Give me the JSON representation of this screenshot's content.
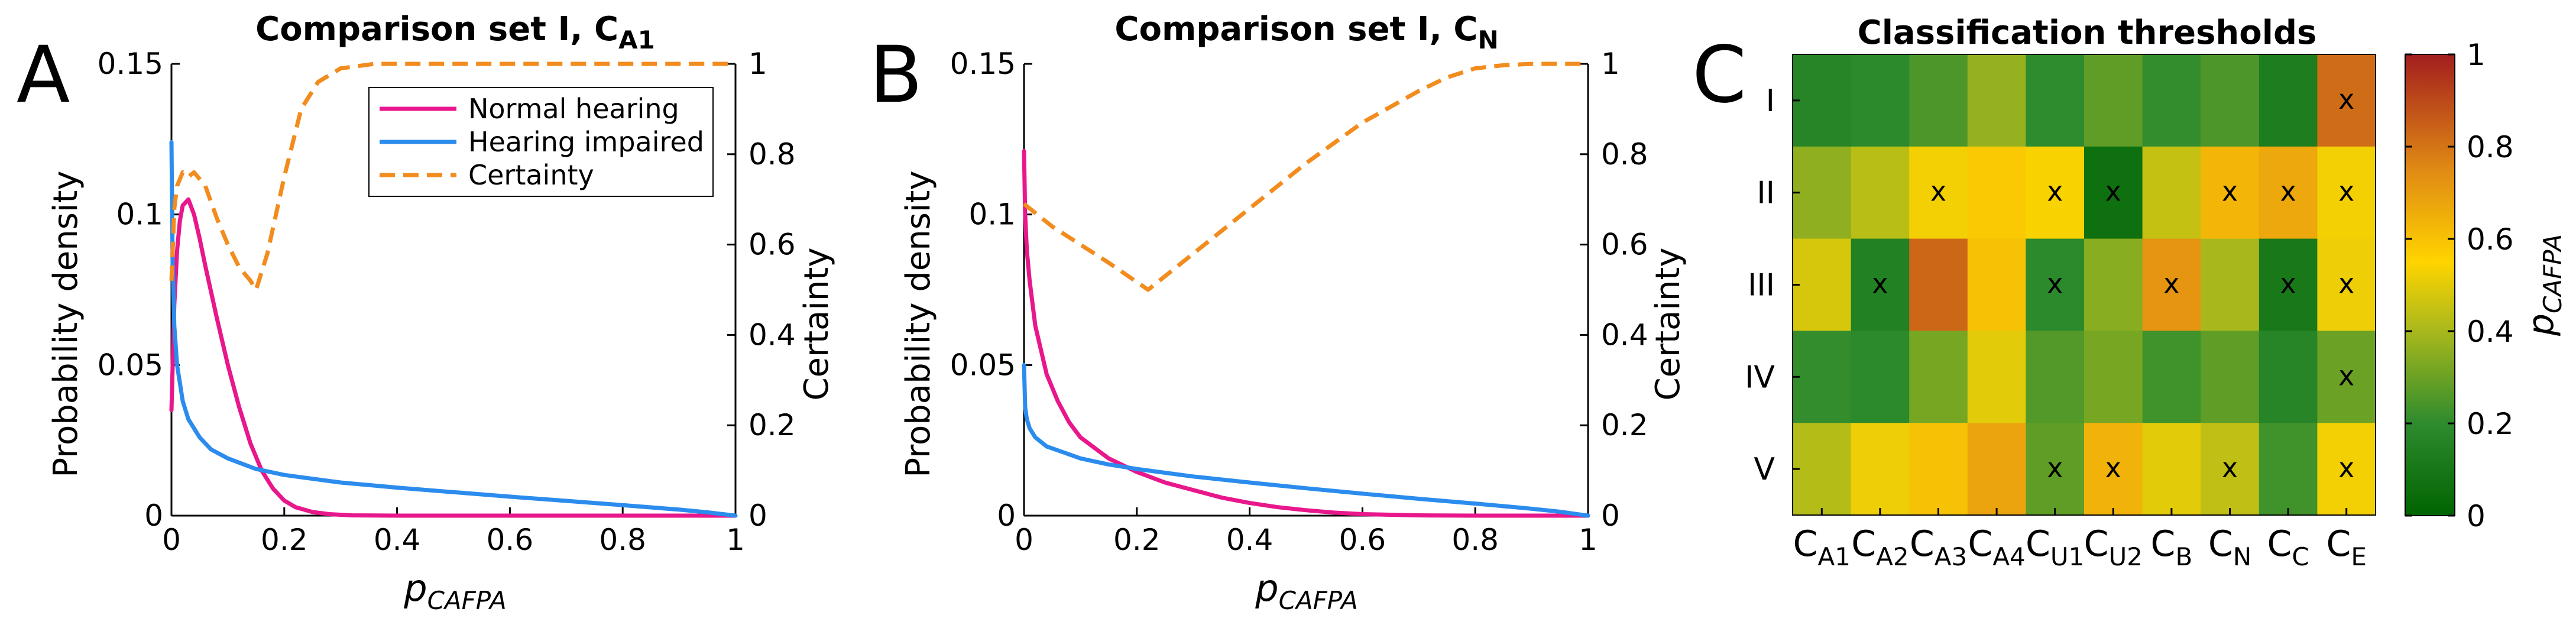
{
  "colors": {
    "normal": "#E8178B",
    "impaired": "#2B8CEE",
    "certainty": "#F28C1E",
    "mark": "#000000",
    "cm_stops": [
      "#006400",
      "#2E8B2E",
      "#A8B81C",
      "#FFD400",
      "#E08A14",
      "#A31E1E"
    ]
  },
  "figure": {
    "xlabel_main": "p",
    "xlabel_sub": "CAFPA",
    "ylabel_left": "Probability density",
    "ylabel_right": "Certainty"
  },
  "panels": {
    "A": {
      "letter": "A",
      "title_main": "Comparison set I, C",
      "title_sub": "A1"
    },
    "B": {
      "letter": "B",
      "title_main": "Comparison set I, C",
      "title_sub": "N"
    },
    "C": {
      "letter": "C",
      "title": "Classification thresholds"
    }
  },
  "chart_data": [
    {
      "id": "A",
      "type": "line",
      "title": "Comparison set I, C_A1",
      "xlabel": "p_CAFPA",
      "ylabel": "Probability density",
      "y2label": "Certainty",
      "xlim": [
        0,
        1
      ],
      "ylim": [
        0,
        0.15
      ],
      "y2lim": [
        0,
        1
      ],
      "xticks": [
        "0",
        "0.2",
        "0.4",
        "0.6",
        "0.8",
        "1"
      ],
      "yticks": [
        "0",
        "0.05",
        "0.1",
        "0.15"
      ],
      "y2ticks": [
        "0",
        "0.2",
        "0.4",
        "0.6",
        "0.8",
        "1"
      ],
      "legend": {
        "position": "top-right",
        "entries": [
          "Normal hearing",
          "Hearing impaired",
          "Certainty"
        ]
      },
      "series": [
        {
          "name": "Normal hearing",
          "axis": "left",
          "style": "solid",
          "x": [
            0,
            0.005,
            0.01,
            0.015,
            0.02,
            0.03,
            0.04,
            0.05,
            0.06,
            0.08,
            0.1,
            0.12,
            0.14,
            0.16,
            0.18,
            0.2,
            0.22,
            0.25,
            0.28,
            0.32,
            0.4,
            0.5,
            0.7,
            1.0
          ],
          "y": [
            0.035,
            0.07,
            0.088,
            0.098,
            0.103,
            0.105,
            0.1,
            0.092,
            0.083,
            0.066,
            0.05,
            0.036,
            0.024,
            0.015,
            0.009,
            0.005,
            0.0028,
            0.0012,
            0.0005,
            0.0001,
            0,
            0,
            0,
            0
          ]
        },
        {
          "name": "Hearing impaired",
          "axis": "left",
          "style": "solid",
          "x": [
            0,
            0.002,
            0.005,
            0.01,
            0.02,
            0.03,
            0.05,
            0.07,
            0.1,
            0.15,
            0.2,
            0.3,
            0.4,
            0.5,
            0.6,
            0.7,
            0.8,
            0.9,
            0.95,
            1.0
          ],
          "y": [
            0.124,
            0.085,
            0.063,
            0.05,
            0.038,
            0.032,
            0.026,
            0.022,
            0.019,
            0.0155,
            0.0135,
            0.011,
            0.0093,
            0.0078,
            0.0063,
            0.0049,
            0.0035,
            0.002,
            0.0011,
            0
          ]
        },
        {
          "name": "Certainty",
          "axis": "right",
          "style": "dashed",
          "x": [
            0,
            0.005,
            0.01,
            0.02,
            0.03,
            0.04,
            0.06,
            0.08,
            0.1,
            0.12,
            0.14,
            0.15,
            0.17,
            0.2,
            0.23,
            0.26,
            0.3,
            0.33,
            0.36,
            0.4,
            0.5,
            0.6,
            0.8,
            1.0
          ],
          "y": [
            0.52,
            0.68,
            0.73,
            0.76,
            0.75,
            0.76,
            0.73,
            0.66,
            0.6,
            0.55,
            0.52,
            0.5,
            0.58,
            0.75,
            0.9,
            0.96,
            0.99,
            0.995,
            1.0,
            1.0,
            1.0,
            1.0,
            1.0,
            1.0
          ]
        }
      ]
    },
    {
      "id": "B",
      "type": "line",
      "title": "Comparison set I, C_N",
      "xlabel": "p_CAFPA",
      "ylabel": "Probability density",
      "y2label": "Certainty",
      "xlim": [
        0,
        1
      ],
      "ylim": [
        0,
        0.15
      ],
      "y2lim": [
        0,
        1
      ],
      "xticks": [
        "0",
        "0.2",
        "0.4",
        "0.6",
        "0.8",
        "1"
      ],
      "yticks": [
        "0",
        "0.05",
        "0.1",
        "0.15"
      ],
      "y2ticks": [
        "0",
        "0.2",
        "0.4",
        "0.6",
        "0.8",
        "1"
      ],
      "series": [
        {
          "name": "Normal hearing",
          "axis": "left",
          "style": "solid",
          "x": [
            0,
            0.002,
            0.005,
            0.01,
            0.02,
            0.04,
            0.06,
            0.08,
            0.1,
            0.15,
            0.2,
            0.25,
            0.3,
            0.35,
            0.4,
            0.45,
            0.5,
            0.55,
            0.6,
            0.7,
            0.8,
            1.0
          ],
          "y": [
            0.121,
            0.1,
            0.088,
            0.078,
            0.063,
            0.047,
            0.038,
            0.031,
            0.026,
            0.019,
            0.0145,
            0.011,
            0.0085,
            0.006,
            0.0042,
            0.0028,
            0.0018,
            0.001,
            0.0005,
            0.0001,
            0,
            0
          ]
        },
        {
          "name": "Hearing impaired",
          "axis": "left",
          "style": "solid",
          "x": [
            0,
            0.002,
            0.005,
            0.01,
            0.02,
            0.04,
            0.07,
            0.1,
            0.15,
            0.2,
            0.3,
            0.4,
            0.5,
            0.6,
            0.7,
            0.8,
            0.9,
            0.95,
            1.0
          ],
          "y": [
            0.05,
            0.036,
            0.032,
            0.029,
            0.026,
            0.023,
            0.021,
            0.019,
            0.017,
            0.0155,
            0.013,
            0.011,
            0.0091,
            0.0073,
            0.0056,
            0.004,
            0.0023,
            0.0013,
            0
          ]
        },
        {
          "name": "Certainty",
          "axis": "right",
          "style": "dashed",
          "x": [
            0,
            0.02,
            0.05,
            0.1,
            0.15,
            0.22,
            0.3,
            0.4,
            0.5,
            0.6,
            0.7,
            0.75,
            0.8,
            0.85,
            0.9,
            0.95,
            1.0
          ],
          "y": [
            0.69,
            0.67,
            0.64,
            0.6,
            0.56,
            0.5,
            0.58,
            0.68,
            0.78,
            0.87,
            0.94,
            0.97,
            0.99,
            0.997,
            1.0,
            1.0,
            1.0
          ]
        }
      ]
    },
    {
      "id": "C",
      "type": "heatmap",
      "title": "Classification thresholds",
      "colorbar_label": "p_CAFPA",
      "clim": [
        0,
        1
      ],
      "cticks": [
        "0",
        "0.2",
        "0.4",
        "0.6",
        "0.8",
        "1"
      ],
      "rows": [
        "I",
        "II",
        "III",
        "IV",
        "V"
      ],
      "columns": [
        {
          "main": "C",
          "sub": "A1"
        },
        {
          "main": "C",
          "sub": "A2"
        },
        {
          "main": "C",
          "sub": "A3"
        },
        {
          "main": "C",
          "sub": "A4"
        },
        {
          "main": "C",
          "sub": "U1"
        },
        {
          "main": "C",
          "sub": "U2"
        },
        {
          "main": "C",
          "sub": "B"
        },
        {
          "main": "C",
          "sub": "N"
        },
        {
          "main": "C",
          "sub": "C"
        },
        {
          "main": "C",
          "sub": "E"
        }
      ],
      "values": [
        [
          0.17,
          0.19,
          0.25,
          0.37,
          0.2,
          0.28,
          0.21,
          0.25,
          0.13,
          0.82
        ],
        [
          0.36,
          0.43,
          0.53,
          0.58,
          0.54,
          0.06,
          0.45,
          0.63,
          0.67,
          0.53
        ],
        [
          0.48,
          0.15,
          0.83,
          0.6,
          0.19,
          0.35,
          0.72,
          0.4,
          0.11,
          0.52
        ],
        [
          0.21,
          0.19,
          0.32,
          0.5,
          0.26,
          0.32,
          0.23,
          0.28,
          0.17,
          0.3
        ],
        [
          0.42,
          0.52,
          0.6,
          0.68,
          0.28,
          0.64,
          0.5,
          0.44,
          0.23,
          0.53
        ]
      ],
      "marks": [
        [
          false,
          false,
          false,
          false,
          false,
          false,
          false,
          false,
          false,
          true
        ],
        [
          false,
          false,
          true,
          false,
          true,
          true,
          false,
          true,
          true,
          true
        ],
        [
          false,
          true,
          false,
          false,
          true,
          false,
          true,
          false,
          true,
          true
        ],
        [
          false,
          false,
          false,
          false,
          false,
          false,
          false,
          false,
          false,
          true
        ],
        [
          false,
          false,
          false,
          false,
          true,
          true,
          false,
          true,
          false,
          true
        ]
      ],
      "mark_symbol": "x"
    }
  ]
}
